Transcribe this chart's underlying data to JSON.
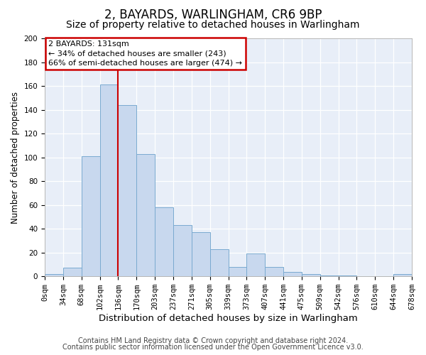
{
  "title": "2, BAYARDS, WARLINGHAM, CR6 9BP",
  "subtitle": "Size of property relative to detached houses in Warlingham",
  "xlabel": "Distribution of detached houses by size in Warlingham",
  "ylabel": "Number of detached properties",
  "bar_labels": [
    "0sqm",
    "34sqm",
    "68sqm",
    "102sqm",
    "136sqm",
    "170sqm",
    "203sqm",
    "237sqm",
    "271sqm",
    "305sqm",
    "339sqm",
    "373sqm",
    "407sqm",
    "441sqm",
    "475sqm",
    "509sqm",
    "542sqm",
    "576sqm",
    "610sqm",
    "644sqm",
    "678sqm"
  ],
  "bar_values": [
    2,
    7,
    101,
    161,
    144,
    103,
    58,
    43,
    37,
    23,
    8,
    19,
    8,
    4,
    2,
    1,
    1,
    0,
    0,
    2
  ],
  "bar_color": "#c8d8ee",
  "bar_edge_color": "#7aaad0",
  "vline_x": 4,
  "vline_color": "#cc0000",
  "ylim": [
    0,
    200
  ],
  "yticks": [
    0,
    20,
    40,
    60,
    80,
    100,
    120,
    140,
    160,
    180,
    200
  ],
  "annotation_title": "2 BAYARDS: 131sqm",
  "annotation_line1": "← 34% of detached houses are smaller (243)",
  "annotation_line2": "66% of semi-detached houses are larger (474) →",
  "annotation_box_color": "#ffffff",
  "annotation_box_edge": "#cc0000",
  "footer1": "Contains HM Land Registry data © Crown copyright and database right 2024.",
  "footer2": "Contains public sector information licensed under the Open Government Licence v3.0.",
  "bg_color": "#ffffff",
  "plot_bg_color": "#e8eef8",
  "grid_color": "#ffffff",
  "title_fontsize": 12,
  "subtitle_fontsize": 10,
  "xlabel_fontsize": 9.5,
  "ylabel_fontsize": 8.5,
  "tick_fontsize": 7.5,
  "footer_fontsize": 7,
  "annotation_fontsize": 8
}
